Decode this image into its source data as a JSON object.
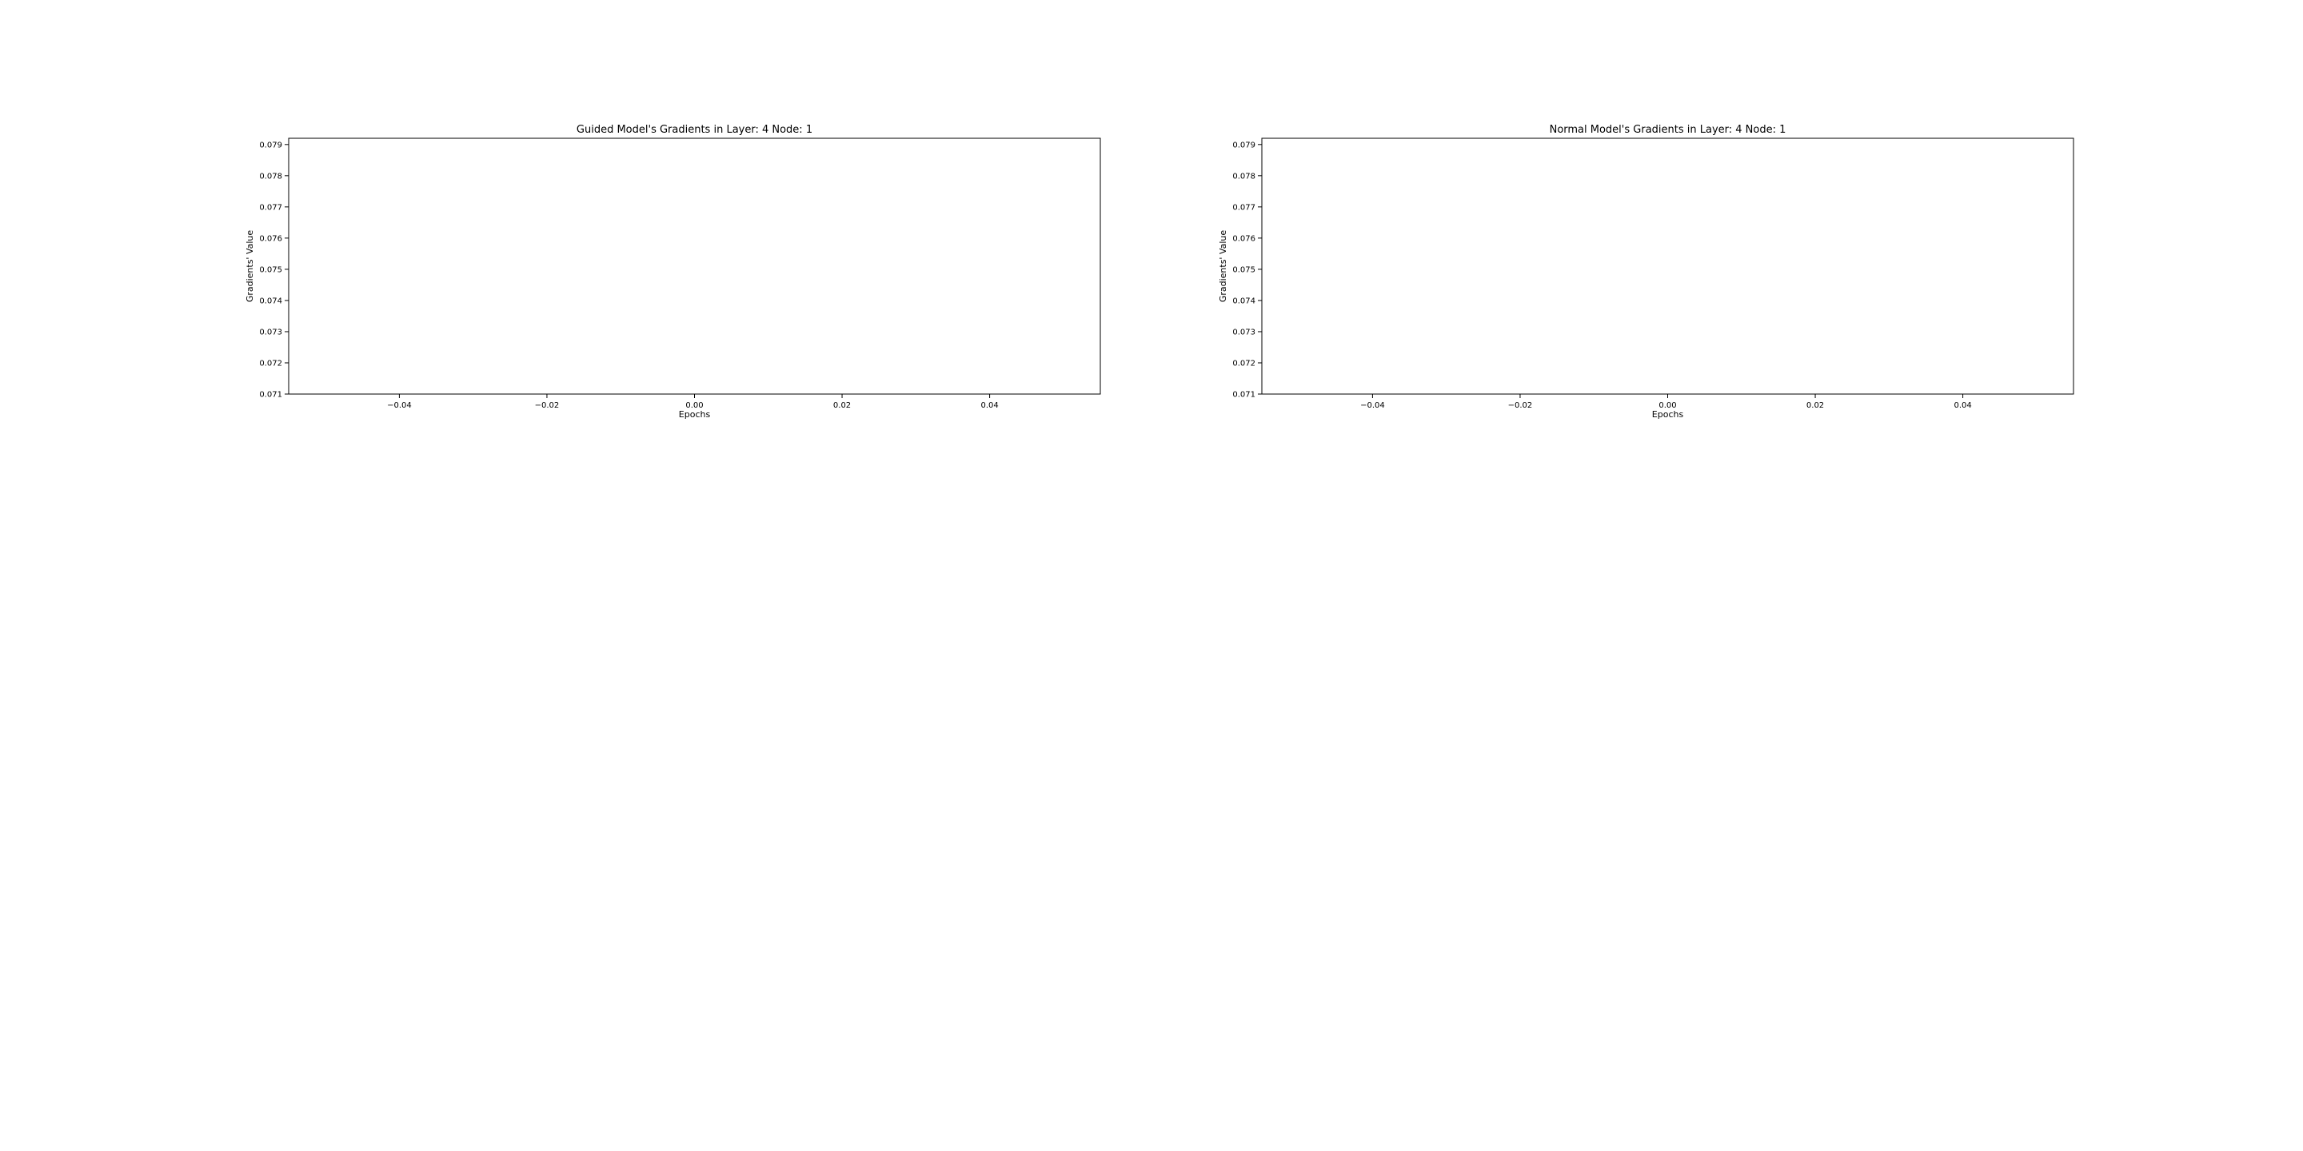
{
  "chart_data": [
    {
      "type": "line",
      "title": "Guided Model's Gradients in Layer: 4 Node: 1",
      "xlabel": "Epochs",
      "ylabel": "Gradients' Value",
      "xlim": [
        -0.055,
        0.055
      ],
      "ylim": [
        0.071,
        0.0792
      ],
      "xticks": [
        -0.04,
        -0.02,
        0.0,
        0.02,
        0.04
      ],
      "xtick_labels": [
        "−0.04",
        "−0.02",
        "0.00",
        "0.02",
        "0.04"
      ],
      "yticks": [
        0.071,
        0.072,
        0.073,
        0.074,
        0.075,
        0.076,
        0.077,
        0.078,
        0.079
      ],
      "ytick_labels": [
        "0.071",
        "0.072",
        "0.073",
        "0.074",
        "0.075",
        "0.076",
        "0.077",
        "0.078",
        "0.079"
      ],
      "series": [],
      "grid": false
    },
    {
      "type": "line",
      "title": "Normal Model's Gradients in Layer: 4 Node: 1",
      "xlabel": "Epochs",
      "ylabel": "Gradients' Value",
      "xlim": [
        -0.055,
        0.055
      ],
      "ylim": [
        0.071,
        0.0792
      ],
      "xticks": [
        -0.04,
        -0.02,
        0.0,
        0.02,
        0.04
      ],
      "xtick_labels": [
        "−0.04",
        "−0.02",
        "0.00",
        "0.02",
        "0.04"
      ],
      "yticks": [
        0.071,
        0.072,
        0.073,
        0.074,
        0.075,
        0.076,
        0.077,
        0.078,
        0.079
      ],
      "ytick_labels": [
        "0.071",
        "0.072",
        "0.073",
        "0.074",
        "0.075",
        "0.076",
        "0.077",
        "0.078",
        "0.079"
      ],
      "series": [],
      "grid": false
    }
  ],
  "colors": {
    "axes": "#000000",
    "background": "#ffffff"
  }
}
